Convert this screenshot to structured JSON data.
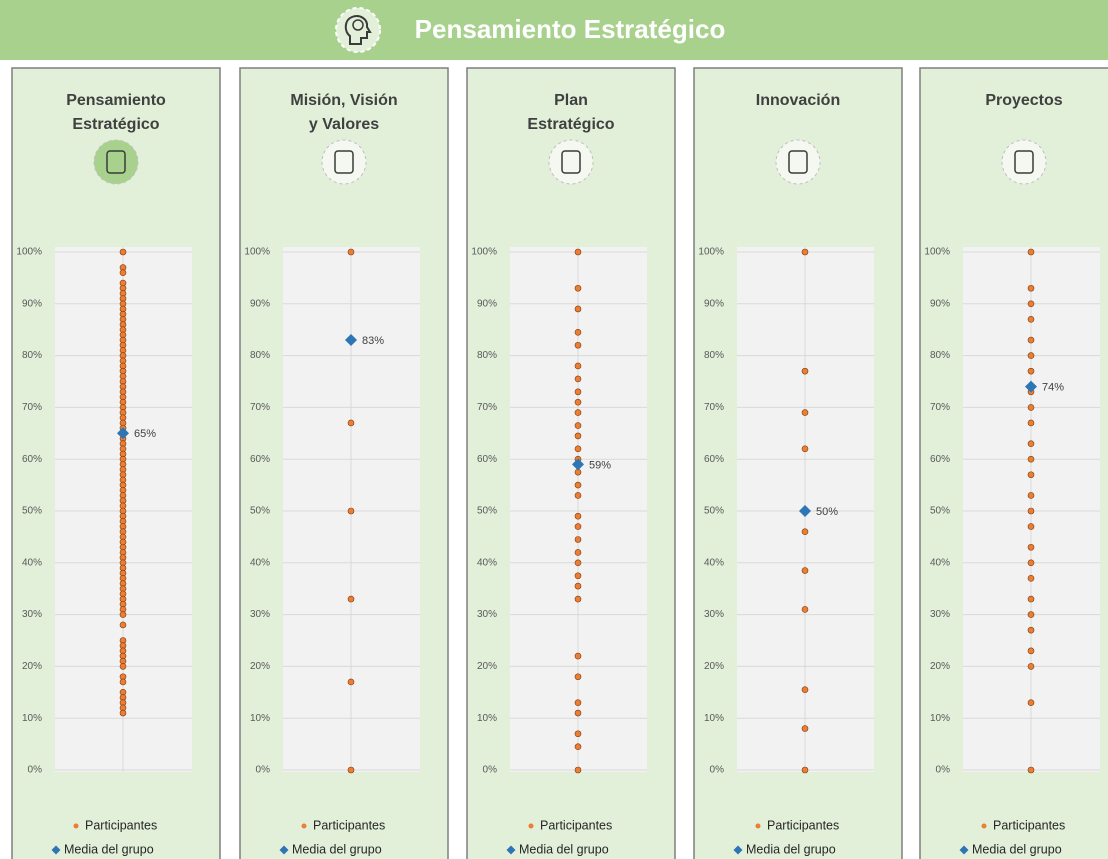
{
  "header": {
    "title": "Pensamiento Estratégico"
  },
  "chart_data": [
    {
      "type": "strip",
      "title": [
        "Pensamiento",
        "Estratégico"
      ],
      "ylim": [
        0,
        100
      ],
      "yticks": [
        {
          "value": 0,
          "label": "0%"
        },
        {
          "value": 10,
          "label": "10%"
        },
        {
          "value": 20,
          "label": "20%"
        },
        {
          "value": 30,
          "label": "30%"
        },
        {
          "value": 40,
          "label": "40%"
        },
        {
          "value": 50,
          "label": "50%"
        },
        {
          "value": 60,
          "label": "60%"
        },
        {
          "value": 70,
          "label": "70%"
        },
        {
          "value": 80,
          "label": "80%"
        },
        {
          "value": 90,
          "label": "90%"
        },
        {
          "value": 100,
          "label": "100%"
        }
      ],
      "grid": true,
      "series": [
        {
          "name": "Participantes",
          "color": "#ed7d31",
          "values": [
            100,
            97,
            96,
            94,
            93,
            92,
            91,
            90,
            89,
            88,
            87,
            86,
            85,
            84,
            83,
            82,
            81,
            80,
            79,
            78,
            77,
            76,
            75,
            74,
            73,
            72,
            71,
            70,
            69,
            68,
            67,
            66,
            65,
            64,
            63,
            62,
            61,
            60,
            59,
            58,
            57,
            56,
            55,
            54,
            53,
            52,
            51,
            50,
            49,
            48,
            47,
            46,
            45,
            44,
            43,
            42,
            41,
            40,
            39,
            38,
            37,
            36,
            35,
            34,
            33,
            32,
            31,
            30,
            28,
            25,
            24,
            23,
            22,
            21,
            20,
            18,
            17,
            15,
            14,
            13,
            12,
            11
          ]
        },
        {
          "name": "Media del grupo",
          "color": "#2e75b6",
          "values": [
            65
          ],
          "value_labels": [
            "65%"
          ]
        }
      ]
    },
    {
      "type": "strip",
      "title": [
        "Misión, Visión",
        "y Valores"
      ],
      "ylim": [
        0,
        100
      ],
      "yticks": [
        {
          "value": 0,
          "label": "0%"
        },
        {
          "value": 10,
          "label": "10%"
        },
        {
          "value": 20,
          "label": "20%"
        },
        {
          "value": 30,
          "label": "30%"
        },
        {
          "value": 40,
          "label": "40%"
        },
        {
          "value": 50,
          "label": "50%"
        },
        {
          "value": 60,
          "label": "60%"
        },
        {
          "value": 70,
          "label": "70%"
        },
        {
          "value": 80,
          "label": "80%"
        },
        {
          "value": 90,
          "label": "90%"
        },
        {
          "value": 100,
          "label": "100%"
        }
      ],
      "grid": true,
      "series": [
        {
          "name": "Participantes",
          "color": "#ed7d31",
          "values": [
            100,
            67,
            50,
            33,
            17,
            0
          ]
        },
        {
          "name": "Media del grupo",
          "color": "#2e75b6",
          "values": [
            83
          ],
          "value_labels": [
            "83%"
          ]
        }
      ]
    },
    {
      "type": "strip",
      "title": [
        "Plan",
        "Estratégico"
      ],
      "ylim": [
        0,
        100
      ],
      "yticks": [
        {
          "value": 0,
          "label": "0%"
        },
        {
          "value": 10,
          "label": "10%"
        },
        {
          "value": 20,
          "label": "20%"
        },
        {
          "value": 30,
          "label": "30%"
        },
        {
          "value": 40,
          "label": "40%"
        },
        {
          "value": 50,
          "label": "50%"
        },
        {
          "value": 60,
          "label": "60%"
        },
        {
          "value": 70,
          "label": "70%"
        },
        {
          "value": 80,
          "label": "80%"
        },
        {
          "value": 90,
          "label": "90%"
        },
        {
          "value": 100,
          "label": "100%"
        }
      ],
      "grid": true,
      "series": [
        {
          "name": "Participantes",
          "color": "#ed7d31",
          "values": [
            100,
            93,
            89,
            84.5,
            82,
            78,
            75.5,
            73,
            71,
            69,
            66.5,
            64.5,
            62,
            60,
            57.5,
            55,
            53,
            49,
            47,
            44.5,
            42,
            40,
            37.5,
            35.5,
            33,
            22,
            18,
            13,
            11,
            7,
            4.5,
            0
          ]
        },
        {
          "name": "Media del grupo",
          "color": "#2e75b6",
          "values": [
            59
          ],
          "value_labels": [
            "59%"
          ]
        }
      ]
    },
    {
      "type": "strip",
      "title": [
        "Innovación"
      ],
      "ylim": [
        0,
        100
      ],
      "yticks": [
        {
          "value": 0,
          "label": "0%"
        },
        {
          "value": 10,
          "label": "10%"
        },
        {
          "value": 20,
          "label": "20%"
        },
        {
          "value": 30,
          "label": "30%"
        },
        {
          "value": 40,
          "label": "40%"
        },
        {
          "value": 50,
          "label": "50%"
        },
        {
          "value": 60,
          "label": "60%"
        },
        {
          "value": 70,
          "label": "70%"
        },
        {
          "value": 80,
          "label": "80%"
        },
        {
          "value": 90,
          "label": "90%"
        },
        {
          "value": 100,
          "label": "100%"
        }
      ],
      "grid": true,
      "series": [
        {
          "name": "Participantes",
          "color": "#ed7d31",
          "values": [
            100,
            77,
            69,
            62,
            46,
            38.5,
            31,
            15.5,
            8,
            0
          ]
        },
        {
          "name": "Media del grupo",
          "color": "#2e75b6",
          "values": [
            50
          ],
          "value_labels": [
            "50%"
          ]
        }
      ]
    },
    {
      "type": "strip",
      "title": [
        "Proyectos"
      ],
      "ylim": [
        0,
        100
      ],
      "yticks": [
        {
          "value": 0,
          "label": "0%"
        },
        {
          "value": 10,
          "label": "10%"
        },
        {
          "value": 20,
          "label": "20%"
        },
        {
          "value": 30,
          "label": "30%"
        },
        {
          "value": 40,
          "label": "40%"
        },
        {
          "value": 50,
          "label": "50%"
        },
        {
          "value": 60,
          "label": "60%"
        },
        {
          "value": 70,
          "label": "70%"
        },
        {
          "value": 80,
          "label": "80%"
        },
        {
          "value": 90,
          "label": "90%"
        },
        {
          "value": 100,
          "label": "100%"
        }
      ],
      "grid": true,
      "series": [
        {
          "name": "Participantes",
          "color": "#ed7d31",
          "values": [
            100,
            93,
            90,
            87,
            83,
            80,
            77,
            73,
            70,
            67,
            63,
            60,
            57,
            53,
            50,
            47,
            43,
            40,
            37,
            33,
            30,
            27,
            23,
            20,
            13,
            0
          ]
        },
        {
          "name": "Media del grupo",
          "color": "#2e75b6",
          "values": [
            74
          ],
          "value_labels": [
            "74%"
          ]
        }
      ]
    }
  ]
}
